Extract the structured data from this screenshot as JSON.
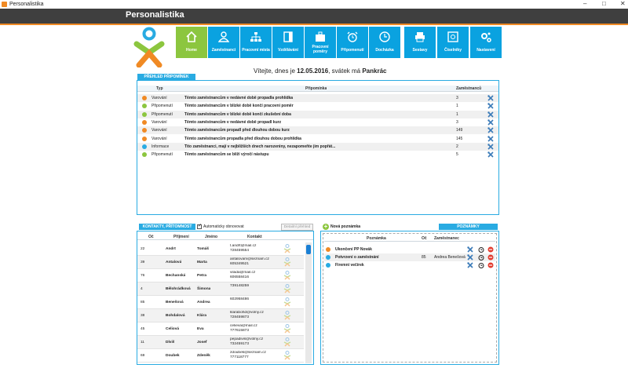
{
  "window": {
    "title": "Personalistika"
  },
  "app": {
    "header_title": "Personalistika"
  },
  "nav": [
    {
      "label": "Home",
      "icon": "home-icon"
    },
    {
      "label": "Zaměstnanci",
      "icon": "person-icon"
    },
    {
      "label": "Pracovní místa",
      "icon": "org-chart-icon"
    },
    {
      "label": "Vzdělávání",
      "icon": "book-icon"
    },
    {
      "label": "Pracovní poměry",
      "icon": "briefcase-icon"
    },
    {
      "label": "Připomenutí",
      "icon": "alarm-clock-icon"
    },
    {
      "label": "Docházka",
      "icon": "clock-icon"
    },
    {
      "label": "Sestavy",
      "icon": "printer-icon"
    },
    {
      "label": "Číselníky",
      "icon": "safe-icon"
    },
    {
      "label": "Nastavení",
      "icon": "gears-icon"
    }
  ],
  "welcome": {
    "prefix": "Vítejte, dnes je",
    "date": "12.05.2016",
    "middle": ", svátek má",
    "name": "Pankrác"
  },
  "reminders": {
    "tab_label": "PŘEHLED PŘIPOMÍNEK",
    "columns": {
      "type": "Typ",
      "reminder": "Připomínka",
      "employees": "Zaměstnanců"
    },
    "rows": [
      {
        "color": "#f08a24",
        "type": "Varování",
        "text": "Těmto zaměstnancům v nedávné době propadla prohlídka",
        "count": "3"
      },
      {
        "color": "#8cc63f",
        "type": "Připomenutí",
        "text": "Těmto zaměstnancům v blízké době končí pracovní poměr",
        "count": "1"
      },
      {
        "color": "#8cc63f",
        "type": "Připomenutí",
        "text": "Těmto zaměstnancům v blízké době končí zkušební doba",
        "count": "1"
      },
      {
        "color": "#f08a24",
        "type": "Varování",
        "text": "Těmto zaměstnancům v nedávné době propadl kurz",
        "count": "3"
      },
      {
        "color": "#f08a24",
        "type": "Varování",
        "text": "Těmto zaměstnancům propadl před dlouhou dobou kurz",
        "count": "149"
      },
      {
        "color": "#f08a24",
        "type": "Varování",
        "text": "Těmto zaměstnancům propadla před dlouhou dobou prohlídka",
        "count": "145"
      },
      {
        "color": "#29abe2",
        "type": "Informace",
        "text": "Tito zaměstnanci, mají v nejbližších dnech narozeniny, nezapomeňte jim popřát...",
        "count": "2"
      },
      {
        "color": "#8cc63f",
        "type": "Připomenutí",
        "text": "Těmto zaměstnancům se blíží výročí nástupu",
        "count": "5"
      }
    ]
  },
  "contacts": {
    "tab_label": "KONTAKTY, PŘÍTOMNOST",
    "auto_refresh_label": "Automaticky obnovovat",
    "detail_button": "Detailní přehled",
    "columns": {
      "oc": "Oč",
      "surname": "Příjmení",
      "name": "Jméno",
      "contact": "Kontakt"
    },
    "rows": [
      {
        "oc": "22",
        "surname": "Andrt",
        "name": "Tomáš",
        "email": "t.andrt@mail.cz",
        "phone": "728459554"
      },
      {
        "oc": "39",
        "surname": "Antalová",
        "name": "Marta",
        "email": "antalovam@seznam.cz",
        "phone": "605349521"
      },
      {
        "oc": "76",
        "surname": "Bechanská",
        "name": "Petra",
        "email": "vilada@mail.cz",
        "phone": "606558416"
      },
      {
        "oc": "4",
        "surname": "Bělohrádková",
        "name": "Šimona",
        "email": "",
        "phone": "739148259"
      },
      {
        "oc": "85",
        "surname": "Benešová",
        "name": "Andrea",
        "email": "",
        "phone": "602958486"
      },
      {
        "oc": "38",
        "surname": "Bohdalová",
        "name": "Klára",
        "email": "klarabohd@volny.cz",
        "phone": "728459873"
      },
      {
        "oc": "45",
        "surname": "Celiová",
        "name": "Eva",
        "email": "celieva@mail.cz",
        "phone": "777615873"
      },
      {
        "oc": "11",
        "surname": "Dlviš",
        "name": "Josef",
        "email": "pepadivis@volny.cz",
        "phone": "732459173"
      },
      {
        "oc": "69",
        "surname": "Doubek",
        "name": "Zdeněk",
        "email": "zdoubek@seznam.cz",
        "phone": "777118777"
      }
    ]
  },
  "notes": {
    "add_label": "Nová poznámka",
    "tab_label": "POZNÁMKY",
    "columns": {
      "note": "Poznámka",
      "oc": "Oč",
      "employee": "Zaměstnanec"
    },
    "rows": [
      {
        "color": "#f08a24",
        "note": "Ukončení PP Novák",
        "oc": "",
        "employee": ""
      },
      {
        "color": "#29abe2",
        "note": "Potvrzení o zaměstnání",
        "oc": "85",
        "employee": "Andrea Benešová"
      },
      {
        "color": "#29abe2",
        "note": "Firemní večírek",
        "oc": "",
        "employee": ""
      }
    ]
  }
}
